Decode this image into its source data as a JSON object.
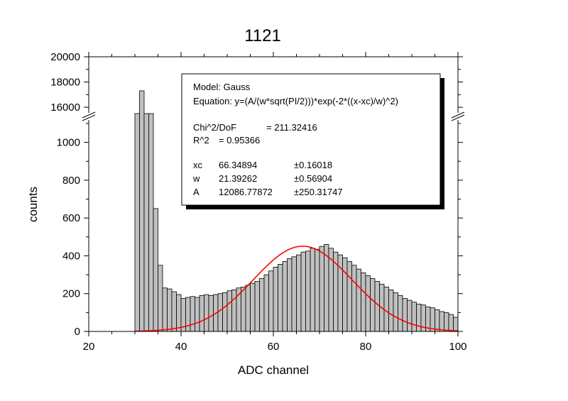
{
  "chart_data": {
    "type": "bar",
    "title": "1121",
    "title_color": "#ff0000",
    "xlabel": "ADC channel",
    "ylabel": "counts",
    "xlim": [
      20,
      100
    ],
    "x_ticks": [
      20,
      40,
      60,
      80,
      100
    ],
    "axis_break": true,
    "lower_ylim": [
      0,
      1100
    ],
    "lower_y_ticks": [
      0,
      200,
      400,
      600,
      800,
      1000
    ],
    "upper_ylim": [
      15500,
      20000
    ],
    "upper_y_ticks": [
      16000,
      18000,
      20000
    ],
    "bar_color": "#c0c0c0",
    "fit_color": "#ff0000",
    "histogram": {
      "x": [
        30,
        31,
        32,
        33,
        34,
        35,
        36,
        37,
        38,
        39,
        40,
        41,
        42,
        43,
        44,
        45,
        46,
        47,
        48,
        49,
        50,
        51,
        52,
        53,
        54,
        55,
        56,
        57,
        58,
        59,
        60,
        61,
        62,
        63,
        64,
        65,
        66,
        67,
        68,
        69,
        70,
        71,
        72,
        73,
        74,
        75,
        76,
        77,
        78,
        79,
        80,
        81,
        82,
        83,
        84,
        85,
        86,
        87,
        88,
        89,
        90,
        91,
        92,
        93,
        94,
        95,
        96,
        97,
        98,
        99
      ],
      "values": [
        15500,
        17300,
        15500,
        15500,
        650,
        350,
        230,
        225,
        210,
        195,
        175,
        180,
        185,
        180,
        190,
        195,
        190,
        195,
        200,
        205,
        215,
        220,
        230,
        235,
        245,
        255,
        265,
        280,
        300,
        320,
        340,
        355,
        370,
        385,
        395,
        405,
        420,
        425,
        440,
        435,
        450,
        460,
        440,
        420,
        405,
        390,
        370,
        350,
        330,
        310,
        295,
        280,
        265,
        250,
        235,
        220,
        205,
        190,
        175,
        165,
        155,
        145,
        140,
        130,
        125,
        115,
        105,
        100,
        90,
        75
      ]
    },
    "fit": {
      "model": "Gauss",
      "equation": "y=(A/(w*sqrt(PI/2)))*exp(-2*((x-xc)/w)^2)",
      "xc": 66.34894,
      "w": 21.39262,
      "A": 12086.77872,
      "x_range": [
        30,
        100
      ]
    },
    "stats_box": {
      "model_label": "Model: Gauss",
      "equation_label": "Equation: y=(A/(w*sqrt(PI/2)))*exp(-2*((x-xc)/w)^2)",
      "chi_label": "Chi^2/DoF",
      "chi_value": "= 211.32416",
      "r2_label": "R^2",
      "r2_value": "=  0.95366",
      "params": [
        {
          "name": "xc",
          "value": "66.34894",
          "error": "±0.16018"
        },
        {
          "name": "w",
          "value": "21.39262",
          "error": "±0.56904"
        },
        {
          "name": "A",
          "value": "12086.77872",
          "error": "±250.31747"
        }
      ]
    }
  }
}
